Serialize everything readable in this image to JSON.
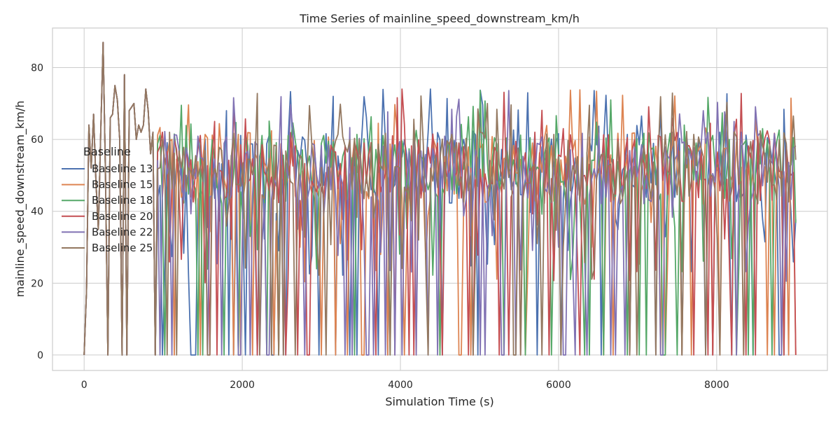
{
  "chart_data": {
    "type": "line",
    "title": "Time Series of mainline_speed_downstream_km/h",
    "xlabel": "Simulation Time (s)",
    "ylabel": "mainline_speed_downstream_km/h",
    "xlim": [
      -400,
      9400
    ],
    "ylim": [
      -4.3,
      91
    ],
    "xticks": [
      0,
      2000,
      4000,
      6000,
      8000
    ],
    "yticks": [
      0,
      20,
      40,
      60,
      80
    ],
    "grid": true,
    "legend": {
      "title": "Baseline",
      "placement": "center-left"
    },
    "series": [
      {
        "name": "Baseline 13",
        "color": "#4c72b0",
        "x": [],
        "values": []
      },
      {
        "name": "Baseline 15",
        "color": "#dd8452",
        "x": [],
        "values": []
      },
      {
        "name": "Baseline 18",
        "color": "#55a868",
        "x": [],
        "values": []
      },
      {
        "name": "Baseline 20",
        "color": "#c44e52",
        "x": [],
        "values": []
      },
      {
        "name": "Baseline 22",
        "color": "#8172b3",
        "x": [],
        "values": []
      },
      {
        "name": "Baseline 25",
        "color": "#937860",
        "x": [],
        "values": []
      }
    ]
  },
  "colors": {
    "background": "#ffffff",
    "grid": "#cccccc",
    "axis_text": "#262626"
  }
}
